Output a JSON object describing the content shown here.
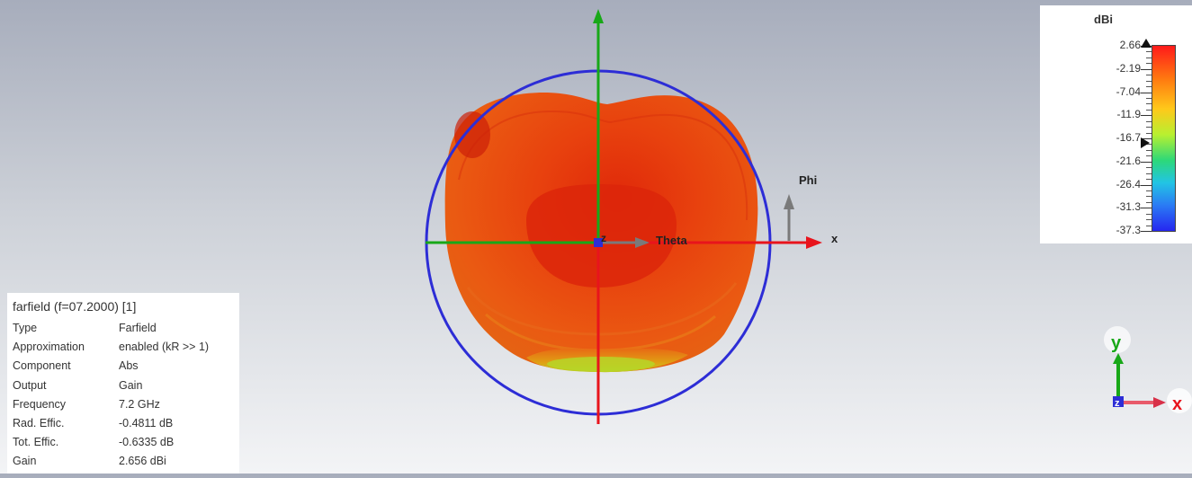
{
  "colors": {
    "circle": "#2d2dd6",
    "axis_x": "#e8141c",
    "axis_y": "#18a818",
    "pattern_main": "#e8410e",
    "pattern_low": "#9cd020"
  },
  "labels": {
    "phi": "Phi",
    "theta": "Theta",
    "x_axis": "x",
    "z_axis": "z"
  },
  "info_panel": {
    "title": "farfield (f=07.2000) [1]",
    "rows": [
      {
        "key": "Type",
        "value": "Farfield"
      },
      {
        "key": "Approximation",
        "value": "enabled (kR >> 1)"
      },
      {
        "key": "Component",
        "value": "Abs"
      },
      {
        "key": "Output",
        "value": "Gain"
      },
      {
        "key": "Frequency",
        "value": "7.2 GHz"
      },
      {
        "key": "Rad. Effic.",
        "value": "-0.4811 dB"
      },
      {
        "key": "Tot. Effic.",
        "value": "-0.6335 dB"
      },
      {
        "key": "Gain",
        "value": "2.656 dBi"
      }
    ]
  },
  "colorbar": {
    "unit": "dBi",
    "ticks": [
      "2.66",
      "-2.19",
      "-7.04",
      "-11.9",
      "-16.7",
      "-21.6",
      "-26.4",
      "-31.3",
      "-37.3"
    ]
  },
  "orientation_triad": {
    "y": "y",
    "x": "x",
    "z": "z"
  }
}
